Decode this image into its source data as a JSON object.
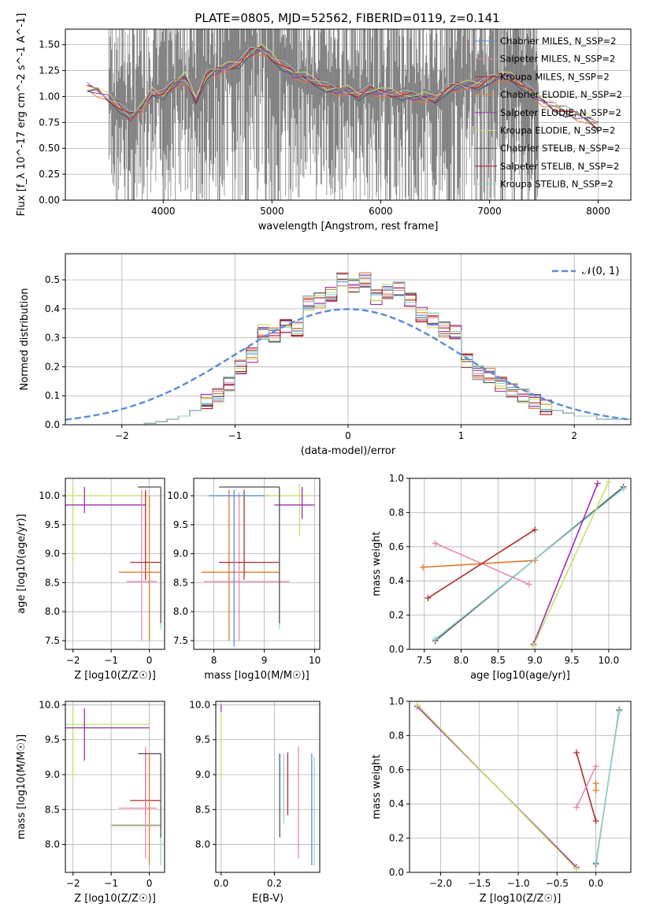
{
  "figure_title": "PLATE=0805, MJD=52562, FIBERID=0119, z=0.141",
  "colors": {
    "chabrier_miles": "#5b8bd6",
    "salpeter_miles": "#e889b5",
    "kroupa_miles": "#ad2f2f",
    "chabrier_elodie": "#e07b2b",
    "salpeter_elodie": "#9b2fae",
    "kroupa_elodie": "#c8e06a",
    "chabrier_stelib": "#555555",
    "salpeter_stelib": "#b01818",
    "kroupa_stelib": "#8fd4d4",
    "data": "#808080",
    "grid": "#b0b0b0",
    "normal": "#5b8bd6"
  },
  "chart_data": [
    {
      "id": "spectrum",
      "type": "line",
      "title": "PLATE=0805, MJD=52562, FIBERID=0119, z=0.141",
      "xlabel": "wavelength [Angstrom, rest frame]",
      "ylabel": "Flux [f_λ 10^-17 erg cm^-2 s^-1 A^-1]",
      "xlim": [
        3100,
        8300
      ],
      "ylim": [
        0,
        1.65
      ],
      "xticks": [
        4000,
        5000,
        6000,
        7000,
        8000
      ],
      "yticks": [
        0.0,
        0.25,
        0.5,
        0.75,
        1.0,
        1.25,
        1.5
      ],
      "legend_position": "top-right",
      "legend": [
        "Chabrier MILES, N_SSP=2",
        "Salpeter MILES, N_SSP=2",
        "Kroupa MILES, N_SSP=2",
        "Chabrier ELODIE, N_SSP=2",
        "Salpeter ELODIE, N_SSP=2",
        "Kroupa ELODIE, N_SSP=2",
        "Chabrier STELIB, N_SSP=2",
        "Salpeter STELIB, N_SSP=2",
        "Kroupa STELIB, N_SSP=2"
      ],
      "model_continuum": {
        "x": [
          3300,
          3400,
          3500,
          3600,
          3700,
          3800,
          3900,
          4000,
          4100,
          4200,
          4300,
          4400,
          4500,
          4600,
          4700,
          4800,
          4900,
          5000,
          5100,
          5200,
          5300,
          5400,
          5500,
          5600,
          5700,
          5800,
          5900,
          6000,
          6100,
          6200,
          6300,
          6400,
          6500,
          6600,
          6700,
          6800,
          6900,
          7000,
          7100,
          7200,
          7300,
          7400,
          7500,
          7600,
          7700,
          7800,
          7900,
          8000
        ],
        "y": [
          1.08,
          1.05,
          0.98,
          0.9,
          0.8,
          0.88,
          1.05,
          1.02,
          1.12,
          1.18,
          0.98,
          1.2,
          1.25,
          1.28,
          1.33,
          1.42,
          1.46,
          1.38,
          1.3,
          1.22,
          1.18,
          1.15,
          1.08,
          1.06,
          1.05,
          1.02,
          1.06,
          1.04,
          1.03,
          1.02,
          1.0,
          0.99,
          0.98,
          1.06,
          1.1,
          1.1,
          1.12,
          1.15,
          1.2,
          1.18,
          1.12,
          1.02,
          0.95,
          0.9,
          0.85,
          0.82,
          0.78,
          0.72
        ]
      },
      "data_noisy_range": [
        3500,
        7450
      ]
    },
    {
      "id": "residuals",
      "type": "histogram",
      "xlabel": "(data-model)/error",
      "ylabel": "Normed distribution",
      "xlim": [
        -2.5,
        2.5
      ],
      "ylim": [
        0,
        0.59
      ],
      "xticks": [
        -2,
        -1,
        0,
        1,
        2
      ],
      "yticks": [
        0.0,
        0.1,
        0.2,
        0.3,
        0.4,
        0.5
      ],
      "legend_position": "top-right",
      "normal_label": "𝒩(0, 1)",
      "bin_edges_start": -2.0,
      "bin_width": 0.1,
      "hist_values": [
        0.0,
        0.0,
        0.005,
        0.01,
        0.02,
        0.03,
        0.05,
        0.08,
        0.1,
        0.14,
        0.2,
        0.24,
        0.32,
        0.31,
        0.34,
        0.33,
        0.42,
        0.43,
        0.45,
        0.5,
        0.48,
        0.5,
        0.44,
        0.46,
        0.47,
        0.43,
        0.38,
        0.36,
        0.33,
        0.32,
        0.22,
        0.18,
        0.17,
        0.14,
        0.12,
        0.1,
        0.08,
        0.06,
        0.05,
        0.04,
        0.03,
        0.03,
        0.02,
        0.02,
        0.02
      ]
    },
    {
      "id": "age_vs_Z",
      "type": "errorbar",
      "xlabel": "Z [log10(Z/Z☉)]",
      "ylabel": "age  [log10(age/yr)]",
      "xlim": [
        -2.2,
        0.4
      ],
      "ylim": [
        7.35,
        10.3
      ],
      "xticks": [
        -2,
        -1,
        0
      ],
      "yticks": [
        7.5,
        8.0,
        8.5,
        9.0,
        9.5,
        10.0
      ],
      "points": [
        {
          "model": "kroupa_elodie",
          "x": -2.0,
          "y": 10.0,
          "xe": [
            -2.3,
            0.0
          ],
          "ye": [
            8.85,
            10.2
          ]
        },
        {
          "model": "salpeter_elodie",
          "x": -1.7,
          "y": 9.84,
          "xe": [
            -2.3,
            -0.1
          ],
          "ye": [
            9.7,
            10.15
          ]
        },
        {
          "model": "kroupa_miles",
          "x": -0.1,
          "y": 8.85,
          "xe": [
            -0.5,
            0.3
          ],
          "ye": [
            8.55,
            10.1
          ]
        },
        {
          "model": "chabrier_elodie",
          "x": 0.0,
          "y": 8.68,
          "xe": [
            -0.8,
            0.3
          ],
          "ye": [
            7.5,
            10.0
          ]
        },
        {
          "model": "salpeter_miles",
          "x": -0.2,
          "y": 8.52,
          "xe": [
            -0.6,
            0.2
          ],
          "ye": [
            7.5,
            10.1
          ]
        },
        {
          "model": "kroupa_stelib",
          "x": 0.3,
          "y": 10.15,
          "xe": [
            -0.3,
            0.3
          ],
          "ye": [
            7.7,
            10.15
          ]
        },
        {
          "model": "chabrier_stelib",
          "x": 0.3,
          "y": 10.15,
          "xe": [
            -0.3,
            0.3
          ],
          "ye": [
            7.8,
            10.15
          ]
        }
      ]
    },
    {
      "id": "age_vs_mass",
      "type": "errorbar",
      "xlabel": "mass [log10(M/M☉)]",
      "ylabel": "",
      "xlim": [
        7.6,
        10.1
      ],
      "ylim": [
        7.35,
        10.3
      ],
      "xticks": [
        8,
        9,
        10
      ],
      "yticks": [
        7.5,
        8.0,
        8.5,
        9.0,
        9.5,
        10.0
      ],
      "points": [
        {
          "model": "chabrier_elodie",
          "x": 8.3,
          "y": 8.68,
          "xe": [
            7.75,
            9.3
          ],
          "ye": [
            7.5,
            10.1
          ]
        },
        {
          "model": "salpeter_miles",
          "x": 8.5,
          "y": 8.52,
          "xe": [
            7.8,
            9.5
          ],
          "ye": [
            7.5,
            10.05
          ]
        },
        {
          "model": "kroupa_miles",
          "x": 8.6,
          "y": 8.85,
          "xe": [
            8.1,
            9.3
          ],
          "ye": [
            8.55,
            10.1
          ]
        },
        {
          "model": "chabrier_miles",
          "x": 8.4,
          "y": 10.0,
          "xe": [
            7.9,
            9.1
          ],
          "ye": [
            7.4,
            10.1
          ]
        },
        {
          "model": "kroupa_stelib",
          "x": 9.3,
          "y": 10.15,
          "xe": [
            8.2,
            9.3
          ],
          "ye": [
            7.7,
            10.15
          ]
        },
        {
          "model": "kroupa_elodie",
          "x": 9.7,
          "y": 10.0,
          "xe": [
            9.0,
            9.9
          ],
          "ye": [
            9.3,
            10.2
          ]
        },
        {
          "model": "salpeter_elodie",
          "x": 9.75,
          "y": 9.84,
          "xe": [
            9.2,
            10.0
          ],
          "ye": [
            9.6,
            10.15
          ]
        },
        {
          "model": "chabrier_stelib",
          "x": 9.3,
          "y": 10.15,
          "xe": [
            8.1,
            9.3
          ],
          "ye": [
            7.8,
            10.15
          ]
        }
      ]
    },
    {
      "id": "weight_vs_age",
      "type": "line",
      "xlabel": "age  [log10(age/yr)]",
      "ylabel": "mass weight",
      "xlim": [
        7.3,
        10.3
      ],
      "ylim": [
        0,
        1.0
      ],
      "xticks": [
        7.5,
        8.0,
        8.5,
        9.0,
        9.5,
        10.0
      ],
      "yticks": [
        0.0,
        0.2,
        0.4,
        0.6,
        0.8,
        1.0
      ],
      "series": [
        {
          "model": "salpeter_miles",
          "x": [
            7.65,
            8.92
          ],
          "y": [
            0.62,
            0.38
          ]
        },
        {
          "model": "chabrier_elodie",
          "x": [
            7.48,
            9.0
          ],
          "y": [
            0.48,
            0.52
          ]
        },
        {
          "model": "kroupa_miles",
          "x": [
            7.55,
            9.0
          ],
          "y": [
            0.3,
            0.7
          ]
        },
        {
          "model": "chabrier_stelib",
          "x": [
            7.65,
            10.2
          ],
          "y": [
            0.05,
            0.95
          ]
        },
        {
          "model": "kroupa_stelib",
          "x": [
            7.65,
            10.2
          ],
          "y": [
            0.06,
            0.94
          ]
        },
        {
          "model": "salpeter_elodie",
          "x": [
            8.98,
            9.85
          ],
          "y": [
            0.03,
            0.97
          ]
        },
        {
          "model": "kroupa_elodie",
          "x": [
            8.98,
            10.0
          ],
          "y": [
            0.02,
            0.98
          ]
        }
      ]
    },
    {
      "id": "mass_vs_Z",
      "type": "errorbar",
      "xlabel": "Z [log10(Z/Z☉)]",
      "ylabel": "mass [log10(M/M☉)]",
      "xlim": [
        -2.2,
        0.4
      ],
      "ylim": [
        7.6,
        10.05
      ],
      "xticks": [
        -2,
        -1,
        0
      ],
      "yticks": [
        8.0,
        8.5,
        9.0,
        9.5,
        10.0
      ],
      "points": [
        {
          "model": "kroupa_elodie",
          "x": -2.0,
          "y": 9.72,
          "xe": [
            -2.3,
            0.0
          ],
          "ye": [
            8.92,
            9.95
          ]
        },
        {
          "model": "salpeter_elodie",
          "x": -1.7,
          "y": 9.67,
          "xe": [
            -2.3,
            0.0
          ],
          "ye": [
            9.2,
            9.95
          ]
        },
        {
          "model": "kroupa_miles",
          "x": -0.1,
          "y": 8.63,
          "xe": [
            -0.5,
            0.3
          ],
          "ye": [
            8.42,
            9.3
          ]
        },
        {
          "model": "salpeter_miles",
          "x": -0.1,
          "y": 8.52,
          "xe": [
            -0.8,
            0.2
          ],
          "ye": [
            7.8,
            9.4
          ]
        },
        {
          "model": "chabrier_elodie",
          "x": 0.0,
          "y": 8.27,
          "xe": [
            -1.0,
            0.3
          ],
          "ye": [
            7.7,
            9.3
          ]
        },
        {
          "model": "kroupa_stelib",
          "x": 0.3,
          "y": 8.28,
          "xe": [
            -1.0,
            0.3
          ],
          "ye": [
            7.7,
            9.3
          ]
        },
        {
          "model": "chabrier_stelib",
          "x": 0.3,
          "y": 9.3,
          "xe": [
            -0.3,
            0.3
          ],
          "ye": [
            8.1,
            9.3
          ]
        }
      ]
    },
    {
      "id": "mass_vs_ebv",
      "type": "errorbar",
      "xlabel": "E(B-V)",
      "ylabel": "",
      "xlim": [
        -0.02,
        0.37
      ],
      "ylim": [
        7.6,
        10.05
      ],
      "xticks": [
        0.0,
        0.2
      ],
      "yticks": [
        8.0,
        8.5,
        9.0,
        9.5,
        10.0
      ],
      "points": [
        {
          "model": "kroupa_elodie",
          "x": 0.0,
          "ye": [
            8.9,
            9.9
          ]
        },
        {
          "model": "salpeter_elodie",
          "x": 0.0,
          "ye": [
            9.9,
            10.0
          ]
        },
        {
          "model": "chabrier_stelib",
          "x": 0.22,
          "ye": [
            8.1,
            9.3
          ]
        },
        {
          "model": "kroupa_stelib",
          "x": 0.235,
          "ye": [
            8.3,
            9.3
          ]
        },
        {
          "model": "kroupa_miles",
          "x": 0.25,
          "ye": [
            8.42,
            9.32
          ]
        },
        {
          "model": "salpeter_miles",
          "x": 0.29,
          "ye": [
            7.8,
            9.4
          ]
        },
        {
          "model": "chabrier_miles",
          "x": 0.34,
          "ye": [
            7.7,
            9.3
          ]
        },
        {
          "model": "kroupa_stelib",
          "x": 0.35,
          "ye": [
            7.7,
            9.25
          ]
        }
      ]
    },
    {
      "id": "weight_vs_Z",
      "type": "line",
      "xlabel": "Z [log10(Z/Z☉)]",
      "ylabel": "mass weight",
      "xlim": [
        -2.4,
        0.45
      ],
      "ylim": [
        0,
        1.0
      ],
      "xticks": [
        -2.0,
        -1.5,
        -1.0,
        -0.5,
        0.0
      ],
      "yticks": [
        0.0,
        0.2,
        0.4,
        0.6,
        0.8,
        1.0
      ],
      "series": [
        {
          "model": "salpeter_elodie",
          "x": [
            -2.3,
            -0.25
          ],
          "y": [
            0.97,
            0.03
          ]
        },
        {
          "model": "kroupa_elodie",
          "x": [
            -2.3,
            -0.25
          ],
          "y": [
            0.98,
            0.02
          ]
        },
        {
          "model": "kroupa_miles",
          "x": [
            -0.25,
            0.0
          ],
          "y": [
            0.7,
            0.3
          ]
        },
        {
          "model": "salpeter_miles",
          "x": [
            -0.25,
            0.0
          ],
          "y": [
            0.38,
            0.62
          ]
        },
        {
          "model": "chabrier_elodie",
          "x": [
            0.0,
            0.0
          ],
          "y": [
            0.48,
            0.52
          ]
        },
        {
          "model": "chabrier_stelib",
          "x": [
            0.0,
            0.3
          ],
          "y": [
            0.05,
            0.95
          ]
        },
        {
          "model": "kroupa_stelib",
          "x": [
            0.0,
            0.3
          ],
          "y": [
            0.06,
            0.94
          ]
        }
      ]
    }
  ]
}
